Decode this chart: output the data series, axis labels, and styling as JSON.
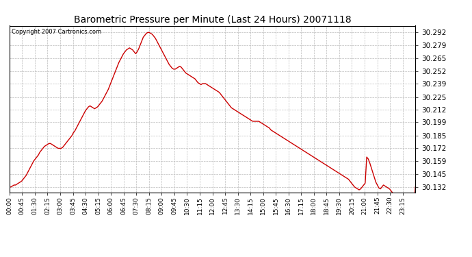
{
  "title": "Barometric Pressure per Minute (Last 24 Hours) 20071118",
  "copyright": "Copyright 2007 Cartronics.com",
  "line_color": "#cc0000",
  "background_color": "#ffffff",
  "grid_color": "#bbbbbb",
  "yticks": [
    30.132,
    30.145,
    30.159,
    30.172,
    30.185,
    30.199,
    30.212,
    30.225,
    30.239,
    30.252,
    30.265,
    30.279,
    30.292
  ],
  "ylim": [
    30.126,
    30.299
  ],
  "xtick_labels": [
    "00:00",
    "00:45",
    "01:30",
    "02:15",
    "03:00",
    "03:45",
    "04:30",
    "05:15",
    "06:00",
    "06:45",
    "07:30",
    "08:15",
    "09:00",
    "09:45",
    "10:30",
    "11:15",
    "12:00",
    "12:45",
    "13:30",
    "14:15",
    "15:00",
    "15:45",
    "16:30",
    "17:15",
    "18:00",
    "18:45",
    "19:30",
    "20:15",
    "21:00",
    "21:45",
    "22:30",
    "23:15"
  ],
  "pressure_data": [
    30.132,
    30.132,
    30.133,
    30.134,
    30.134,
    30.135,
    30.136,
    30.137,
    30.138,
    30.14,
    30.142,
    30.144,
    30.147,
    30.15,
    30.153,
    30.156,
    30.159,
    30.161,
    30.163,
    30.165,
    30.168,
    30.17,
    30.172,
    30.174,
    30.175,
    30.176,
    30.177,
    30.177,
    30.176,
    30.175,
    30.174,
    30.173,
    30.172,
    30.172,
    30.172,
    30.173,
    30.175,
    30.177,
    30.179,
    30.181,
    30.183,
    30.185,
    30.188,
    30.19,
    30.193,
    30.196,
    30.199,
    30.202,
    30.205,
    30.208,
    30.211,
    30.213,
    30.215,
    30.216,
    30.215,
    30.214,
    30.213,
    30.214,
    30.215,
    30.217,
    30.219,
    30.221,
    30.224,
    30.227,
    30.23,
    30.233,
    30.237,
    30.241,
    30.245,
    30.249,
    30.253,
    30.257,
    30.261,
    30.264,
    30.267,
    30.27,
    30.272,
    30.274,
    30.275,
    30.276,
    30.275,
    30.274,
    30.272,
    30.27,
    30.272,
    30.275,
    30.279,
    30.283,
    30.287,
    30.289,
    30.291,
    30.292,
    30.292,
    30.291,
    30.29,
    30.288,
    30.286,
    30.283,
    30.28,
    30.277,
    30.274,
    30.271,
    30.268,
    30.265,
    30.262,
    30.259,
    30.257,
    30.255,
    30.254,
    30.254,
    30.255,
    30.256,
    30.257,
    30.256,
    30.254,
    30.252,
    30.25,
    30.249,
    30.248,
    30.247,
    30.246,
    30.245,
    30.244,
    30.242,
    30.24,
    30.239,
    30.238,
    30.239,
    30.239,
    30.239,
    30.238,
    30.237,
    30.236,
    30.235,
    30.234,
    30.233,
    30.232,
    30.231,
    30.23,
    30.228,
    30.226,
    30.224,
    30.222,
    30.22,
    30.218,
    30.216,
    30.214,
    30.213,
    30.212,
    30.211,
    30.21,
    30.209,
    30.208,
    30.207,
    30.206,
    30.205,
    30.204,
    30.203,
    30.202,
    30.201,
    30.2,
    30.2,
    30.2,
    30.2,
    30.2,
    30.199,
    30.198,
    30.197,
    30.196,
    30.195,
    30.194,
    30.193,
    30.191,
    30.19,
    30.189,
    30.188,
    30.187,
    30.186,
    30.185,
    30.184,
    30.183,
    30.182,
    30.181,
    30.18,
    30.179,
    30.178,
    30.177,
    30.176,
    30.175,
    30.174,
    30.173,
    30.172,
    30.171,
    30.17,
    30.169,
    30.168,
    30.167,
    30.166,
    30.165,
    30.164,
    30.163,
    30.162,
    30.161,
    30.16,
    30.159,
    30.158,
    30.157,
    30.156,
    30.155,
    30.154,
    30.153,
    30.152,
    30.151,
    30.15,
    30.149,
    30.148,
    30.147,
    30.146,
    30.145,
    30.144,
    30.143,
    30.142,
    30.141,
    30.14,
    30.138,
    30.136,
    30.134,
    30.132,
    30.131,
    30.13,
    30.129,
    30.13,
    30.132,
    30.134,
    30.136,
    30.163,
    30.161,
    30.157,
    30.152,
    30.147,
    30.142,
    30.137,
    30.134,
    30.131,
    30.13,
    30.132,
    30.134,
    30.133,
    30.132,
    30.131,
    30.13,
    30.128,
    30.126,
    30.125,
    30.124,
    30.123,
    30.122,
    30.121,
    30.12,
    30.119,
    30.118,
    30.117,
    30.116,
    30.115,
    30.114,
    30.113,
    30.112,
    30.132
  ]
}
